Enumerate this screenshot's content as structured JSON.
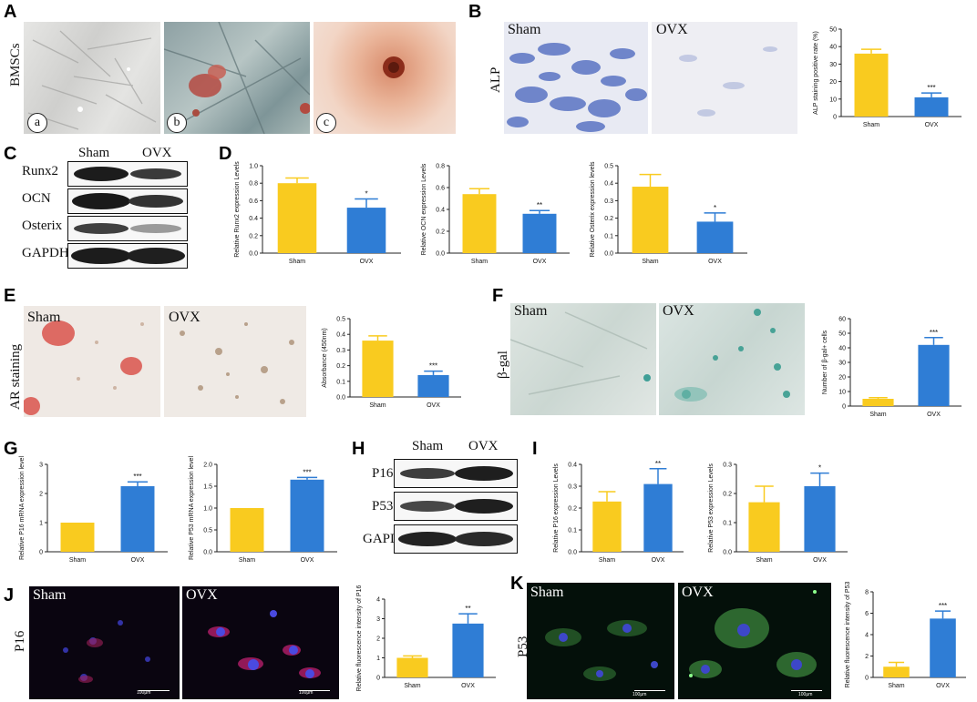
{
  "colors": {
    "sham": "#F9CB1F",
    "ovx": "#2F7DD5",
    "axis": "#222"
  },
  "panels": {
    "A": {
      "letter": "A",
      "side": "BMSCs",
      "subs": [
        "a",
        "b",
        "c"
      ]
    },
    "B": {
      "letter": "B",
      "side": "ALP",
      "sham": "Sham",
      "ovx": "OVX"
    },
    "C": {
      "letter": "C",
      "sham": "Sham",
      "ovx": "OVX",
      "rows": [
        "Runx2",
        "OCN",
        "Osterix",
        "GAPDH"
      ]
    },
    "D": {
      "letter": "D"
    },
    "E": {
      "letter": "E",
      "side": "AR staining",
      "sham": "Sham",
      "ovx": "OVX"
    },
    "F": {
      "letter": "F",
      "side": "β-gal",
      "sham": "Sham",
      "ovx": "OVX"
    },
    "G": {
      "letter": "G"
    },
    "H": {
      "letter": "H",
      "sham": "Sham",
      "ovx": "OVX",
      "rows": [
        "P16",
        "P53",
        "GAPDH"
      ]
    },
    "I": {
      "letter": "I"
    },
    "J": {
      "letter": "J",
      "side": "P16",
      "sham": "Sham",
      "ovx": "OVX",
      "scale": "100μm"
    },
    "K": {
      "letter": "K",
      "side": "P53",
      "sham": "Sham",
      "ovx": "OVX",
      "scale": "100μm"
    }
  },
  "chart_data": [
    {
      "id": "B",
      "type": "bar",
      "categories": [
        "Sham",
        "OVX"
      ],
      "values": [
        36,
        11
      ],
      "errors": [
        2.5,
        2.5
      ],
      "ylabel": "ALP staining positive rate (%)",
      "ylim": [
        0,
        50
      ],
      "ticks": [
        0,
        10,
        20,
        30,
        40,
        50
      ],
      "tick_labels": [
        "0",
        "10",
        "20",
        "30",
        "40",
        "50"
      ],
      "sig": [
        "",
        "***"
      ]
    },
    {
      "id": "D1",
      "type": "bar",
      "categories": [
        "Sham",
        "OVX"
      ],
      "values": [
        0.8,
        0.52
      ],
      "errors": [
        0.06,
        0.1
      ],
      "ylabel": "Relative Runx2 expression Levels",
      "ylim": [
        0,
        1.0
      ],
      "ticks": [
        0,
        0.2,
        0.4,
        0.6,
        0.8,
        1.0
      ],
      "tick_labels": [
        "0.0",
        "0.2",
        "0.4",
        "0.6",
        "0.8",
        "1.0"
      ],
      "sig": [
        "",
        "*"
      ]
    },
    {
      "id": "D2",
      "type": "bar",
      "categories": [
        "Sham",
        "OVX"
      ],
      "values": [
        0.54,
        0.36
      ],
      "errors": [
        0.05,
        0.03
      ],
      "ylabel": "Relative OCN expression Levels",
      "ylim": [
        0,
        0.8
      ],
      "ticks": [
        0,
        0.2,
        0.4,
        0.6,
        0.8
      ],
      "tick_labels": [
        "0.0",
        "0.2",
        "0.4",
        "0.6",
        "0.8"
      ],
      "sig": [
        "",
        "**"
      ]
    },
    {
      "id": "D3",
      "type": "bar",
      "categories": [
        "Sham",
        "OVX"
      ],
      "values": [
        0.38,
        0.18
      ],
      "errors": [
        0.07,
        0.05
      ],
      "ylabel": "Relative Osterix expression levels",
      "ylim": [
        0,
        0.5
      ],
      "ticks": [
        0,
        0.1,
        0.2,
        0.3,
        0.4,
        0.5
      ],
      "tick_labels": [
        "0.0",
        "0.1",
        "0.2",
        "0.3",
        "0.4",
        "0.5"
      ],
      "sig": [
        "",
        "*"
      ]
    },
    {
      "id": "E",
      "type": "bar",
      "categories": [
        "Sham",
        "OVX"
      ],
      "values": [
        0.36,
        0.14
      ],
      "errors": [
        0.03,
        0.025
      ],
      "ylabel": "Absorbance (450nm)",
      "ylim": [
        0,
        0.5
      ],
      "ticks": [
        0,
        0.1,
        0.2,
        0.3,
        0.4,
        0.5
      ],
      "tick_labels": [
        "0.0",
        "0.1",
        "0.2",
        "0.3",
        "0.4",
        "0.5"
      ],
      "sig": [
        "",
        "***"
      ]
    },
    {
      "id": "F",
      "type": "bar",
      "categories": [
        "Sham",
        "OVX"
      ],
      "values": [
        5,
        42
      ],
      "errors": [
        0.8,
        5
      ],
      "ylabel": "Number of β-gal+ cells",
      "ylim": [
        0,
        60
      ],
      "ticks": [
        0,
        10,
        20,
        30,
        40,
        50,
        60
      ],
      "tick_labels": [
        "0",
        "10",
        "20",
        "30",
        "40",
        "50",
        "60"
      ],
      "sig": [
        "",
        "***"
      ]
    },
    {
      "id": "G1",
      "type": "bar",
      "categories": [
        "Sham",
        "OVX"
      ],
      "values": [
        1.0,
        2.25
      ],
      "errors": [
        0,
        0.15
      ],
      "ylabel": "Relative P16 mRNA expression level",
      "ylim": [
        0,
        3
      ],
      "ticks": [
        0,
        1,
        2,
        3
      ],
      "tick_labels": [
        "0",
        "1",
        "2",
        "3"
      ],
      "sig": [
        "",
        "***"
      ]
    },
    {
      "id": "G2",
      "type": "bar",
      "categories": [
        "Sham",
        "OVX"
      ],
      "values": [
        1.0,
        1.65
      ],
      "errors": [
        0,
        0.05
      ],
      "ylabel": "Relative P53 mRNA expression level",
      "ylim": [
        0,
        2.0
      ],
      "ticks": [
        0,
        0.5,
        1.0,
        1.5,
        2.0
      ],
      "tick_labels": [
        "0.0",
        "0.5",
        "1.0",
        "1.5",
        "2.0"
      ],
      "sig": [
        "",
        "***"
      ]
    },
    {
      "id": "I1",
      "type": "bar",
      "categories": [
        "Sham",
        "OVX"
      ],
      "values": [
        0.23,
        0.31
      ],
      "errors": [
        0.045,
        0.07
      ],
      "ylabel": "Relative P16 expression Levels",
      "ylim": [
        0,
        0.4
      ],
      "ticks": [
        0,
        0.1,
        0.2,
        0.3,
        0.4
      ],
      "tick_labels": [
        "0.0",
        "0.1",
        "0.2",
        "0.3",
        "0.4"
      ],
      "sig": [
        "",
        "**"
      ]
    },
    {
      "id": "I2",
      "type": "bar",
      "categories": [
        "Sham",
        "OVX"
      ],
      "values": [
        0.17,
        0.225
      ],
      "errors": [
        0.055,
        0.045
      ],
      "ylabel": "Relative P53 expression Levels",
      "ylim": [
        0,
        0.3
      ],
      "ticks": [
        0,
        0.1,
        0.2,
        0.3
      ],
      "tick_labels": [
        "0.0",
        "0.1",
        "0.2",
        "0.3"
      ],
      "sig": [
        "",
        "*"
      ]
    },
    {
      "id": "J",
      "type": "bar",
      "categories": [
        "Sham",
        "OVX"
      ],
      "values": [
        1.0,
        2.75
      ],
      "errors": [
        0.1,
        0.5
      ],
      "ylabel": "Relative fluorescence intensity of P16",
      "ylim": [
        0,
        4
      ],
      "ticks": [
        0,
        1,
        2,
        3,
        4
      ],
      "tick_labels": [
        "0",
        "1",
        "2",
        "3",
        "4"
      ],
      "sig": [
        "",
        "**"
      ]
    },
    {
      "id": "K",
      "type": "bar",
      "categories": [
        "Sham",
        "OVX"
      ],
      "values": [
        1.0,
        5.5
      ],
      "errors": [
        0.4,
        0.7
      ],
      "ylabel": "Relative fluorescence intensity of P53",
      "ylim": [
        0,
        8
      ],
      "ticks": [
        0,
        2,
        4,
        6,
        8
      ],
      "tick_labels": [
        "0",
        "2",
        "4",
        "6",
        "8"
      ],
      "sig": [
        "",
        "***"
      ]
    }
  ]
}
